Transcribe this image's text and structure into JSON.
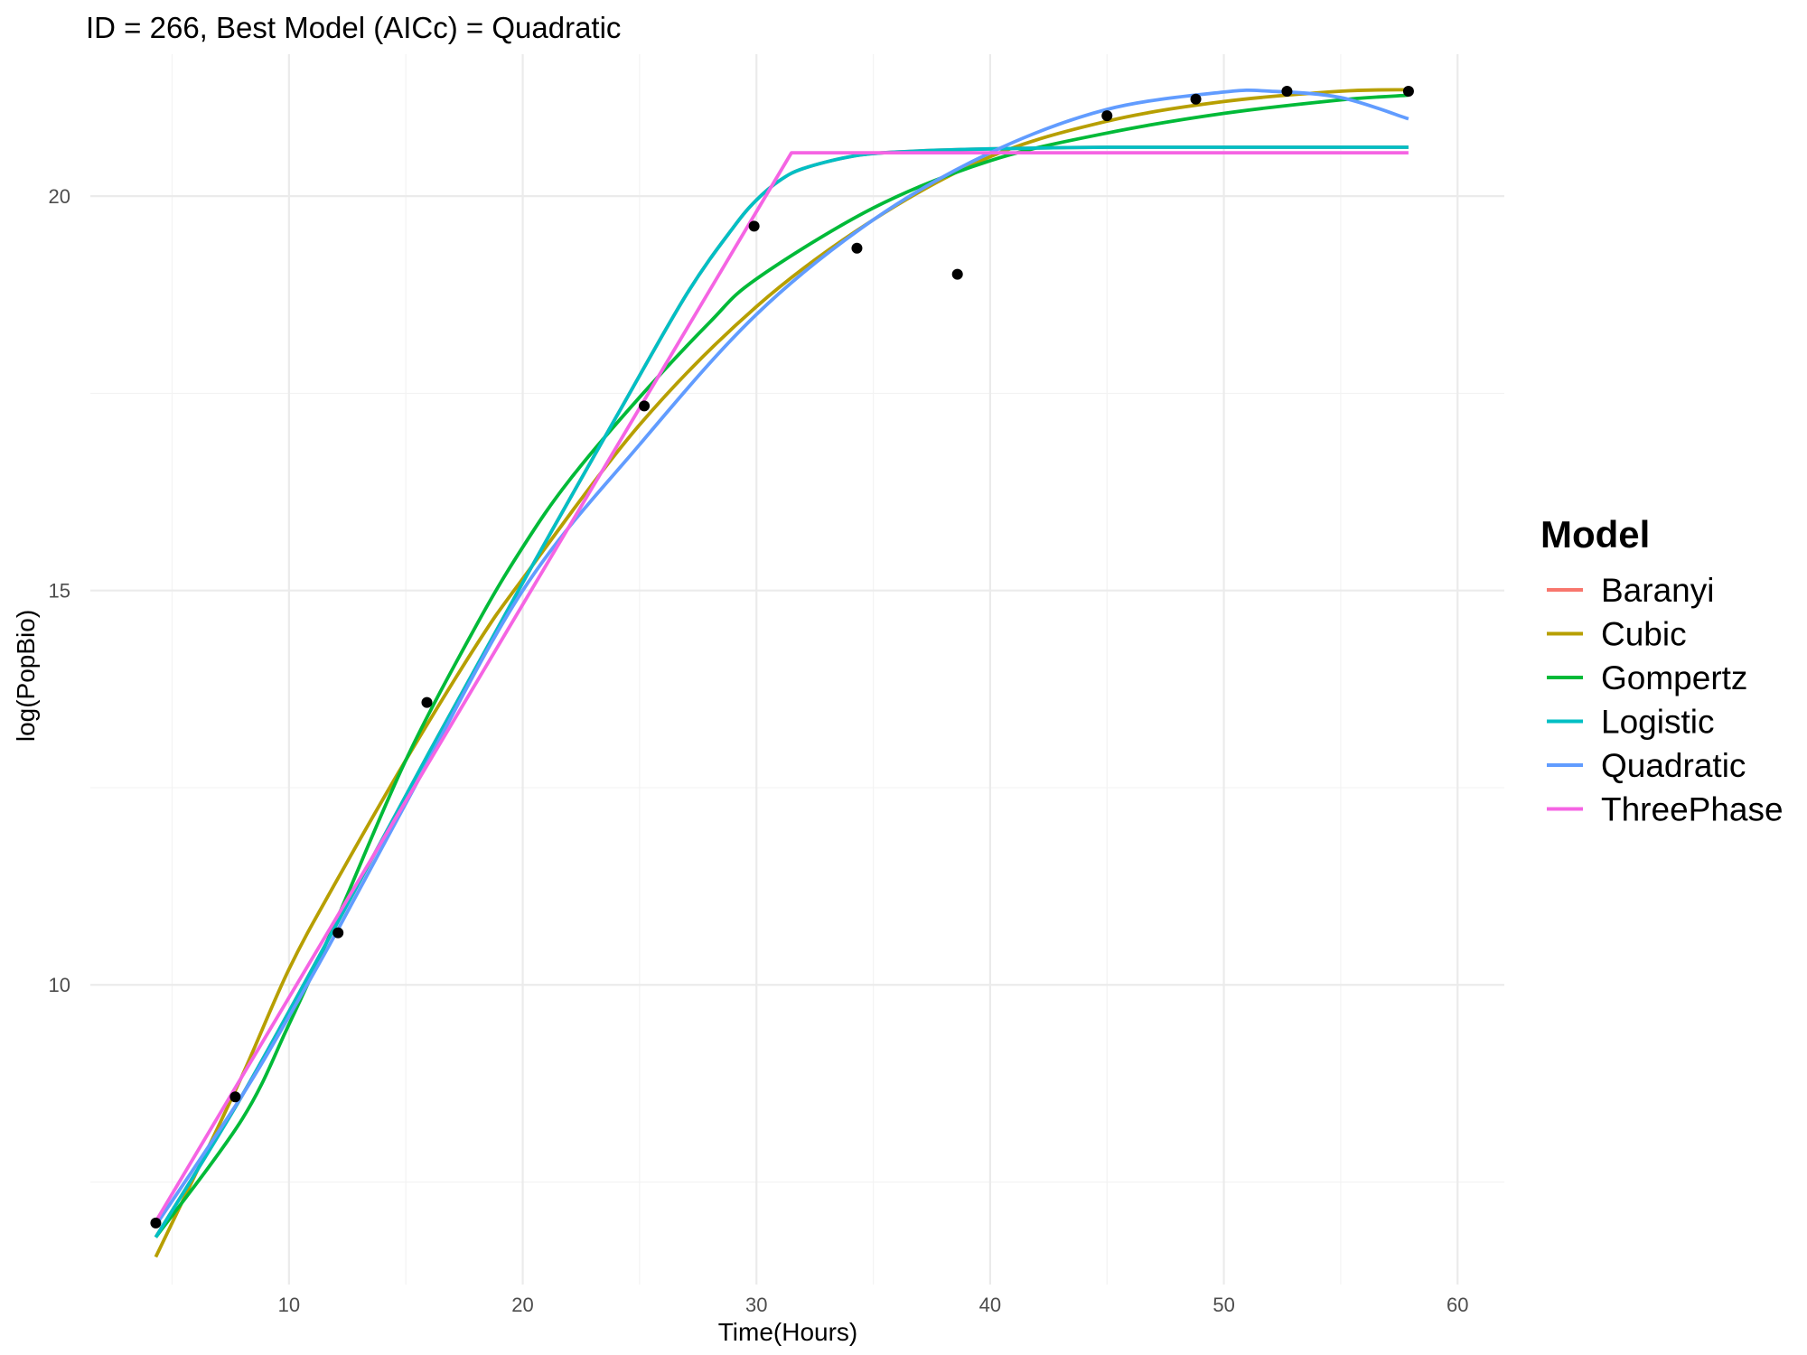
{
  "chart_data": {
    "type": "line",
    "title": "ID = 266, Best Model (AICc) = Quadratic",
    "xlabel": "Time(Hours)",
    "ylabel": "log(PopBio)",
    "xlim": [
      1.5,
      62.0
    ],
    "ylim": [
      6.2,
      21.8
    ],
    "x_ticks": [
      10,
      20,
      30,
      40,
      50,
      60
    ],
    "x_tick_labels": [
      "10",
      "20",
      "30",
      "40",
      "50",
      "60"
    ],
    "y_ticks": [
      10,
      15,
      20
    ],
    "y_tick_labels": [
      "10",
      "15",
      "20"
    ],
    "grid": true,
    "legend": {
      "title": "Model",
      "position": "right"
    },
    "points": [
      {
        "x": 4.3,
        "y": 6.98
      },
      {
        "x": 7.7,
        "y": 8.58
      },
      {
        "x": 12.1,
        "y": 10.66
      },
      {
        "x": 15.9,
        "y": 13.58
      },
      {
        "x": 25.2,
        "y": 17.34
      },
      {
        "x": 29.9,
        "y": 19.62
      },
      {
        "x": 34.3,
        "y": 19.34
      },
      {
        "x": 38.6,
        "y": 19.01
      },
      {
        "x": 45.0,
        "y": 21.02
      },
      {
        "x": 48.8,
        "y": 21.23
      },
      {
        "x": 52.7,
        "y": 21.33
      },
      {
        "x": 57.9,
        "y": 21.33
      }
    ],
    "series": [
      {
        "name": "Baranyi",
        "color": "#F8766D",
        "x": [
          4.3,
          8,
          12,
          16,
          20,
          24,
          27,
          29,
          30,
          31,
          32,
          34,
          36,
          40,
          45,
          50,
          55,
          57.9
        ],
        "y": [
          6.8,
          8.6,
          10.75,
          12.95,
          15.1,
          17.2,
          18.75,
          19.6,
          19.95,
          20.2,
          20.35,
          20.5,
          20.56,
          20.6,
          20.62,
          20.62,
          20.62,
          20.62
        ]
      },
      {
        "name": "Cubic",
        "color": "#B79F00",
        "x": [
          4.3,
          6,
          8,
          10,
          12,
          15,
          18,
          20,
          25,
          30,
          35,
          40,
          45,
          50,
          55,
          57.9
        ],
        "y": [
          6.55,
          7.6,
          8.85,
          10.2,
          11.3,
          12.85,
          14.3,
          15.15,
          17.1,
          18.6,
          19.7,
          20.5,
          20.95,
          21.2,
          21.33,
          21.35
        ]
      },
      {
        "name": "Gompertz",
        "color": "#00BA38",
        "x": [
          4.3,
          8,
          10,
          12,
          15,
          18,
          20,
          22,
          25,
          28,
          30,
          35,
          40,
          45,
          50,
          55,
          57.9
        ],
        "y": [
          6.8,
          8.3,
          9.5,
          10.8,
          12.85,
          14.55,
          15.55,
          16.4,
          17.45,
          18.4,
          18.95,
          19.85,
          20.45,
          20.8,
          21.05,
          21.22,
          21.28
        ]
      },
      {
        "name": "Logistic",
        "color": "#00BFC4",
        "x": [
          4.3,
          8,
          12,
          16,
          20,
          24,
          27,
          29,
          30,
          31,
          32,
          34,
          36,
          40,
          45,
          50,
          55,
          57.9
        ],
        "y": [
          6.8,
          8.6,
          10.75,
          12.95,
          15.1,
          17.2,
          18.75,
          19.6,
          19.95,
          20.2,
          20.35,
          20.5,
          20.56,
          20.6,
          20.62,
          20.62,
          20.62,
          20.62
        ]
      },
      {
        "name": "Quadratic",
        "color": "#619CFF",
        "x": [
          4.3,
          8,
          10,
          12,
          15,
          20,
          25,
          30,
          35,
          40,
          45,
          50,
          52,
          55,
          57.9
        ],
        "y": [
          6.95,
          8.6,
          9.6,
          10.65,
          12.3,
          15.0,
          16.85,
          18.5,
          19.7,
          20.55,
          21.1,
          21.32,
          21.33,
          21.25,
          20.98
        ]
      },
      {
        "name": "ThreePhase",
        "color": "#F564E3",
        "x": [
          4.3,
          31.5,
          57.9
        ],
        "y": [
          7.0,
          20.55,
          20.55
        ]
      }
    ]
  }
}
